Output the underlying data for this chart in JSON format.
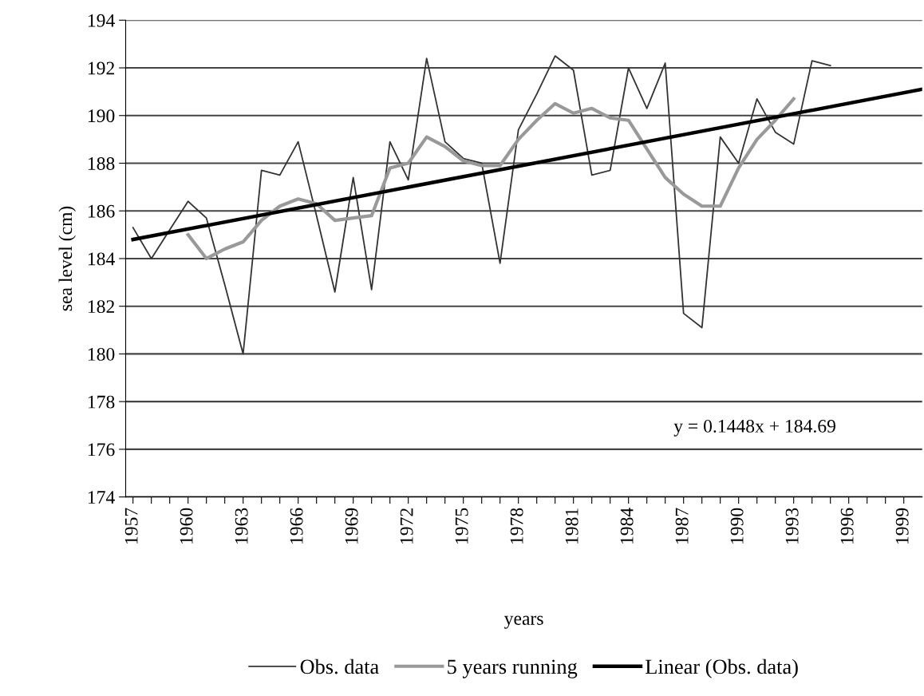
{
  "chart_data": {
    "type": "line",
    "xlabel": "years",
    "ylabel": "sea level (cm)",
    "x": [
      1957,
      1958,
      1959,
      1960,
      1961,
      1962,
      1963,
      1964,
      1965,
      1966,
      1967,
      1968,
      1969,
      1970,
      1971,
      1972,
      1973,
      1974,
      1975,
      1976,
      1977,
      1978,
      1979,
      1980,
      1981,
      1982,
      1983,
      1984,
      1985,
      1986,
      1987,
      1988,
      1989,
      1990,
      1991,
      1992,
      1993,
      1994,
      1995
    ],
    "series": [
      {
        "name": "Obs. data",
        "color": "#333333",
        "values": [
          185.3,
          184.0,
          185.2,
          186.4,
          185.7,
          182.9,
          180.0,
          187.7,
          187.5,
          188.9,
          185.8,
          182.6,
          187.4,
          182.7,
          188.9,
          187.3,
          192.4,
          188.9,
          188.2,
          188.0,
          183.8,
          189.4,
          190.9,
          192.5,
          191.9,
          187.5,
          187.7,
          192.0,
          190.3,
          192.2,
          181.7,
          181.1,
          189.1,
          188.0,
          190.7,
          189.3,
          188.8,
          192.3,
          192.1
        ]
      },
      {
        "name": "5 years running",
        "color": "#999999",
        "x": [
          1960,
          1961,
          1962,
          1963,
          1964,
          1965,
          1966,
          1967,
          1968,
          1969,
          1970,
          1971,
          1972,
          1973,
          1974,
          1975,
          1976,
          1977,
          1978,
          1979,
          1980,
          1981,
          1982,
          1983,
          1984,
          1985,
          1986,
          1987,
          1988,
          1989,
          1990,
          1991,
          1992,
          1993
        ],
        "values": [
          185.0,
          184.0,
          184.4,
          184.7,
          185.6,
          186.2,
          186.5,
          186.3,
          185.6,
          185.7,
          185.8,
          187.8,
          188.0,
          189.1,
          188.7,
          188.1,
          187.9,
          187.9,
          189.0,
          189.8,
          190.5,
          190.1,
          190.3,
          189.9,
          189.8,
          188.6,
          187.4,
          186.7,
          186.2,
          186.2,
          187.8,
          189.0,
          189.8,
          190.7
        ]
      },
      {
        "name": "Linear (Obs. data)",
        "color": "#000000",
        "x": [
          1957,
          2000
        ],
        "values": [
          184.8,
          191.1
        ]
      }
    ],
    "annotations": [
      "y = 0.1448x + 184.69"
    ],
    "ylim": [
      174,
      194
    ],
    "yticks": [
      174,
      176,
      178,
      180,
      182,
      184,
      186,
      188,
      190,
      192,
      194
    ],
    "xlim": [
      1956.6,
      2000
    ],
    "xticks": [
      1957,
      {
        "value": 1958,
        "label": null
      },
      {
        "value": 1959,
        "label": null
      },
      1960,
      {
        "value": 1961,
        "label": null
      },
      {
        "value": 1962,
        "label": null
      },
      1963,
      {
        "value": 1964,
        "label": null
      },
      {
        "value": 1965,
        "label": null
      },
      1966,
      {
        "value": 1967,
        "label": null
      },
      {
        "value": 1968,
        "label": null
      },
      1969,
      {
        "value": 1970,
        "label": null
      },
      {
        "value": 1971,
        "label": null
      },
      1972,
      {
        "value": 1973,
        "label": null
      },
      {
        "value": 1974,
        "label": null
      },
      1975,
      {
        "value": 1976,
        "label": null
      },
      {
        "value": 1977,
        "label": null
      },
      1978,
      {
        "value": 1979,
        "label": null
      },
      {
        "value": 1980,
        "label": null
      },
      1981,
      {
        "value": 1982,
        "label": null
      },
      {
        "value": 1983,
        "label": null
      },
      1984,
      {
        "value": 1985,
        "label": null
      },
      {
        "value": 1986,
        "label": null
      },
      1987,
      {
        "value": 1988,
        "label": null
      },
      {
        "value": 1989,
        "label": null
      },
      1990,
      {
        "value": 1991,
        "label": null
      },
      {
        "value": 1992,
        "label": null
      },
      1993,
      {
        "value": 1994,
        "label": null
      },
      {
        "value": 1995,
        "label": null
      },
      1996,
      {
        "value": 1997,
        "label": null
      },
      {
        "value": 1998,
        "label": null
      },
      1999
    ],
    "grid": "y",
    "legend": "bottom",
    "marker": "none",
    "line_style": "solid"
  }
}
